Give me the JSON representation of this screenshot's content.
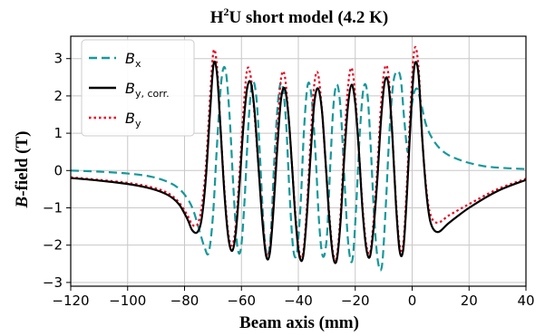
{
  "chart_data": {
    "type": "line",
    "title": {
      "main": "H",
      "sup": "2",
      "rest": "U short model (4.2 K)"
    },
    "xlabel": "Beam axis (mm)",
    "ylabel": {
      "italic": "B",
      "rest": "-field (T)"
    },
    "xlim": [
      -120,
      40
    ],
    "ylim": [
      -3.1,
      3.6
    ],
    "xticks": [
      -120,
      -100,
      -80,
      -60,
      -40,
      -20,
      0,
      20,
      40
    ],
    "yticks": [
      -3,
      -2,
      -1,
      0,
      1,
      2,
      3
    ],
    "xtick_labels": [
      "−120",
      "−100",
      "−80",
      "−60",
      "−40",
      "−20",
      "0",
      "20",
      "40"
    ],
    "ytick_labels": [
      "−3",
      "−2",
      "−1",
      "0",
      "1",
      "2",
      "3"
    ],
    "grid": true,
    "legend_position": "top-left",
    "series": [
      {
        "key": "bx",
        "name": "B",
        "sub": "x",
        "color": "#17989a",
        "style": "dashed",
        "x": [
          -120,
          -110,
          -100,
          -92,
          -86,
          -82,
          -79,
          -77,
          -75,
          -73,
          -71.5,
          -70,
          -68.5,
          -67,
          -65.6,
          -64.2,
          -62.8,
          -61.5,
          -60.2,
          -58.9,
          -57.5,
          -56.2,
          -54.8,
          -53.5,
          -52.2,
          -51,
          -49.7,
          -48.5,
          -47.1,
          -45.8,
          -44.4,
          -43.1,
          -41.8,
          -40.5,
          -39.2,
          -38,
          -36.7,
          -35.4,
          -34,
          -32.7,
          -31.4,
          -30,
          -28.8,
          -27.6,
          -26.3,
          -25,
          -23.7,
          -22.4,
          -21,
          -19.7,
          -18.4,
          -17.1,
          -15.8,
          -14.6,
          -13.3,
          -12,
          -10.6,
          -9.3,
          -8,
          -6.7,
          -5.4,
          -4,
          -2.7,
          -1.4,
          0,
          1.5,
          3,
          5,
          8,
          12,
          18,
          25,
          32,
          40
        ],
        "y": [
          0.0,
          -0.03,
          -0.08,
          -0.16,
          -0.3,
          -0.48,
          -0.75,
          -1.05,
          -1.55,
          -2.05,
          -2.2,
          -1.2,
          0.8,
          2.45,
          2.7,
          1.5,
          -0.5,
          -2.0,
          -2.1,
          -0.8,
          1.3,
          2.35,
          2.0,
          0.4,
          -1.5,
          -2.3,
          -1.7,
          0.2,
          1.9,
          2.35,
          1.4,
          -0.6,
          -2.1,
          -2.2,
          -0.9,
          1.1,
          2.3,
          2.0,
          0.5,
          -1.4,
          -2.3,
          -1.8,
          0.1,
          1.8,
          2.3,
          1.5,
          -0.4,
          -2.0,
          -2.4,
          -1.0,
          1.0,
          2.2,
          2.1,
          0.7,
          -1.3,
          -2.45,
          -2.55,
          -1.0,
          1.0,
          2.3,
          2.65,
          2.45,
          1.3,
          0.5,
          1.8,
          2.2,
          1.85,
          1.2,
          0.75,
          0.45,
          0.25,
          0.12,
          0.07,
          0.04
        ]
      },
      {
        "key": "bycorr",
        "name": "B",
        "sub": "y, corr.",
        "color": "#000000",
        "style": "solid",
        "x": [
          -120,
          -110,
          -100,
          -92,
          -86,
          -82,
          -79,
          -77.3,
          -75.5,
          -74,
          -72.5,
          -71,
          -69.8,
          -68.6,
          -67.4,
          -66,
          -64.6,
          -63.2,
          -61.9,
          -60.6,
          -59.3,
          -58,
          -56.7,
          -55.4,
          -54,
          -52.6,
          -51.3,
          -50,
          -48.7,
          -47.4,
          -46.1,
          -44.8,
          -43.5,
          -42.2,
          -40.9,
          -39.6,
          -38.3,
          -37,
          -35.7,
          -34.4,
          -33.1,
          -31.7,
          -30.4,
          -29.1,
          -27.8,
          -26.5,
          -25.2,
          -23.9,
          -22.6,
          -21.3,
          -20,
          -18.7,
          -17.4,
          -16.1,
          -14.8,
          -13.5,
          -12.2,
          -10.9,
          -9.6,
          -8.3,
          -7,
          -5.7,
          -4.4,
          -3.1,
          -1.8,
          -0.5,
          0.8,
          2.2,
          3.6,
          5,
          6.5,
          9,
          13,
          20,
          30,
          40
        ],
        "y": [
          -0.2,
          -0.27,
          -0.36,
          -0.48,
          -0.65,
          -0.9,
          -1.3,
          -1.6,
          -1.65,
          -1.3,
          -0.2,
          1.6,
          2.85,
          2.6,
          1.2,
          -0.6,
          -1.8,
          -2.15,
          -1.6,
          -0.3,
          1.2,
          2.2,
          2.35,
          1.6,
          0.1,
          -1.4,
          -2.3,
          -2.2,
          -1.0,
          0.6,
          1.9,
          2.2,
          1.5,
          0.1,
          -1.4,
          -2.3,
          -2.3,
          -1.2,
          0.4,
          1.8,
          2.2,
          1.6,
          0.2,
          -1.3,
          -2.3,
          -2.4,
          -1.4,
          0.3,
          1.7,
          2.3,
          1.8,
          0.5,
          -1.1,
          -2.1,
          -2.3,
          -1.5,
          -0.2,
          1.4,
          2.4,
          2.3,
          1.0,
          -0.9,
          -2.15,
          -2.1,
          -0.6,
          1.4,
          2.8,
          2.6,
          0.8,
          -0.6,
          -1.4,
          -1.65,
          -1.4,
          -1.0,
          -0.55,
          -0.25
        ]
      },
      {
        "key": "by",
        "name": "B",
        "sub": "y",
        "color": "#e8001c",
        "style": "dotted",
        "x": [
          -120,
          -110,
          -100,
          -92,
          -86,
          -82,
          -79,
          -77.3,
          -75.5,
          -74,
          -72.5,
          -71,
          -69.8,
          -68.6,
          -67.4,
          -66,
          -64.6,
          -63.2,
          -61.9,
          -60.6,
          -59.3,
          -58,
          -56.7,
          -55.4,
          -54,
          -52.6,
          -51.3,
          -50,
          -48.7,
          -47.4,
          -46.1,
          -44.8,
          -43.5,
          -42.2,
          -40.9,
          -39.6,
          -38.3,
          -37,
          -35.7,
          -34.4,
          -33.1,
          -31.7,
          -30.4,
          -29.1,
          -27.8,
          -26.5,
          -25.2,
          -23.9,
          -22.6,
          -21.3,
          -20,
          -18.7,
          -17.4,
          -16.1,
          -14.8,
          -13.5,
          -12.2,
          -10.9,
          -9.6,
          -8.3,
          -7,
          -5.7,
          -4.4,
          -3.1,
          -1.8,
          -0.5,
          0.8,
          2.2,
          3.6,
          5,
          6.5,
          9,
          13,
          20,
          30,
          40
        ],
        "y": [
          -0.18,
          -0.25,
          -0.33,
          -0.44,
          -0.6,
          -0.85,
          -1.2,
          -1.45,
          -1.45,
          -1.0,
          0.1,
          2.0,
          3.2,
          2.8,
          1.2,
          -0.5,
          -1.7,
          -2.0,
          -1.4,
          0.0,
          1.6,
          2.7,
          2.5,
          1.5,
          0.1,
          -1.3,
          -2.2,
          -2.1,
          -0.8,
          1.0,
          2.45,
          2.55,
          1.5,
          0.1,
          -1.3,
          -2.2,
          -2.2,
          -1.0,
          0.8,
          2.3,
          2.6,
          1.6,
          0.2,
          -1.2,
          -2.2,
          -2.3,
          -1.2,
          0.6,
          2.2,
          2.75,
          2.0,
          0.5,
          -1.0,
          -2.0,
          -2.2,
          -1.3,
          0.1,
          1.8,
          2.75,
          2.55,
          1.0,
          -0.8,
          -2.0,
          -1.95,
          -0.3,
          1.8,
          3.25,
          2.8,
          0.8,
          -0.5,
          -1.2,
          -1.4,
          -1.2,
          -0.9,
          -0.5,
          -0.22
        ]
      }
    ]
  }
}
